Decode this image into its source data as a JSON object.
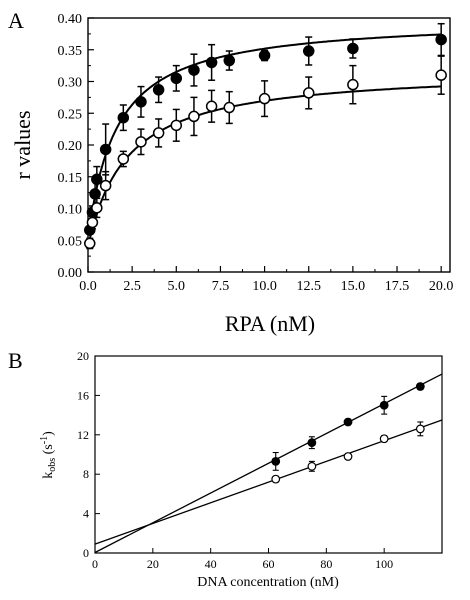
{
  "chart_data": [
    {
      "type": "scatter",
      "panel_label": "A",
      "xlabel": "RPA (nM)",
      "ylabel": "r values",
      "xlim": [
        0,
        20.5
      ],
      "ylim": [
        0,
        0.4
      ],
      "x_ticks": [
        "0.0",
        "2.5",
        "5.0",
        "7.5",
        "10.0",
        "12.5",
        "15.0",
        "17.5",
        "20.0"
      ],
      "y_ticks": [
        "0.00",
        "0.05",
        "0.10",
        "0.15",
        "0.20",
        "0.25",
        "0.30",
        "0.35",
        "0.40"
      ],
      "grid": false,
      "series": [
        {
          "marker": "filled-circle",
          "color": "#000000",
          "points": [
            {
              "x": 0.1,
              "y": 0.066,
              "err": 0.006
            },
            {
              "x": 0.25,
              "y": 0.094,
              "err": 0.01
            },
            {
              "x": 0.4,
              "y": 0.123,
              "err": 0.02
            },
            {
              "x": 0.5,
              "y": 0.146,
              "err": 0.02
            },
            {
              "x": 1.0,
              "y": 0.193,
              "err": 0.04
            },
            {
              "x": 2.0,
              "y": 0.243,
              "err": 0.02
            },
            {
              "x": 3.0,
              "y": 0.268,
              "err": 0.024
            },
            {
              "x": 4.0,
              "y": 0.287,
              "err": 0.02
            },
            {
              "x": 5.0,
              "y": 0.305,
              "err": 0.02
            },
            {
              "x": 6.0,
              "y": 0.318,
              "err": 0.025
            },
            {
              "x": 7.0,
              "y": 0.33,
              "err": 0.028
            },
            {
              "x": 8.0,
              "y": 0.333,
              "err": 0.015
            },
            {
              "x": 10.0,
              "y": 0.341,
              "err": 0.008
            },
            {
              "x": 12.5,
              "y": 0.348,
              "err": 0.022
            },
            {
              "x": 15.0,
              "y": 0.352,
              "err": 0.015
            },
            {
              "x": 20.0,
              "y": 0.366,
              "err": 0.025
            }
          ],
          "fit": {
            "bmax": 0.4,
            "kd": 1.6,
            "offset": 0.05
          }
        },
        {
          "marker": "open-circle",
          "color": "#000000",
          "points": [
            {
              "x": 0.1,
              "y": 0.045,
              "err": 0.008
            },
            {
              "x": 0.25,
              "y": 0.078,
              "err": 0.01
            },
            {
              "x": 0.5,
              "y": 0.101,
              "err": 0.015
            },
            {
              "x": 1.0,
              "y": 0.136,
              "err": 0.022
            },
            {
              "x": 2.0,
              "y": 0.178,
              "err": 0.012
            },
            {
              "x": 3.0,
              "y": 0.205,
              "err": 0.02
            },
            {
              "x": 4.0,
              "y": 0.219,
              "err": 0.022
            },
            {
              "x": 5.0,
              "y": 0.231,
              "err": 0.025
            },
            {
              "x": 6.0,
              "y": 0.245,
              "err": 0.03
            },
            {
              "x": 7.0,
              "y": 0.261,
              "err": 0.025
            },
            {
              "x": 8.0,
              "y": 0.259,
              "err": 0.025
            },
            {
              "x": 10.0,
              "y": 0.273,
              "err": 0.028
            },
            {
              "x": 12.5,
              "y": 0.282,
              "err": 0.025
            },
            {
              "x": 15.0,
              "y": 0.295,
              "err": 0.03
            },
            {
              "x": 20.0,
              "y": 0.31,
              "err": 0.03
            }
          ],
          "fit": {
            "bmax": 0.32,
            "kd": 2.2,
            "offset": 0.04
          }
        }
      ]
    },
    {
      "type": "scatter",
      "panel_label": "B",
      "xlabel": "DNA concentration (nM)",
      "ylabel_main": "k",
      "ylabel_sub": "obs",
      "ylabel_unit": " (s",
      "ylabel_sup": "-1",
      "ylabel_close": ")",
      "xlim": [
        0,
        120
      ],
      "ylim": [
        0,
        20
      ],
      "x_ticks": [
        "0",
        "20",
        "40",
        "60",
        "80",
        "100"
      ],
      "x_tick_values": [
        0,
        20,
        40,
        60,
        80,
        100
      ],
      "y_ticks": [
        "0",
        "4",
        "8",
        "12",
        "16",
        "20"
      ],
      "y_tick_values": [
        0,
        4,
        8,
        12,
        16,
        20
      ],
      "grid": false,
      "series": [
        {
          "marker": "filled-circle",
          "color": "#000000",
          "points": [
            {
              "x": 62.5,
              "y": 9.3,
              "err": 0.9
            },
            {
              "x": 75,
              "y": 11.2,
              "err": 0.6
            },
            {
              "x": 87.5,
              "y": 13.3,
              "err": 0.3
            },
            {
              "x": 100,
              "y": 15.0,
              "err": 0.9
            },
            {
              "x": 112.5,
              "y": 16.9,
              "err": 0.3
            }
          ],
          "line": {
            "slope": 0.151,
            "intercept": 0.05
          }
        },
        {
          "marker": "open-circle",
          "color": "#000000",
          "points": [
            {
              "x": 62.5,
              "y": 7.5,
              "err": 0.3
            },
            {
              "x": 75,
              "y": 8.8,
              "err": 0.5
            },
            {
              "x": 87.5,
              "y": 9.8,
              "err": 0.3
            },
            {
              "x": 100,
              "y": 11.6,
              "err": 0.3
            },
            {
              "x": 112.5,
              "y": 12.6,
              "err": 0.7
            }
          ],
          "line": {
            "slope": 0.105,
            "intercept": 0.9
          }
        }
      ]
    }
  ]
}
